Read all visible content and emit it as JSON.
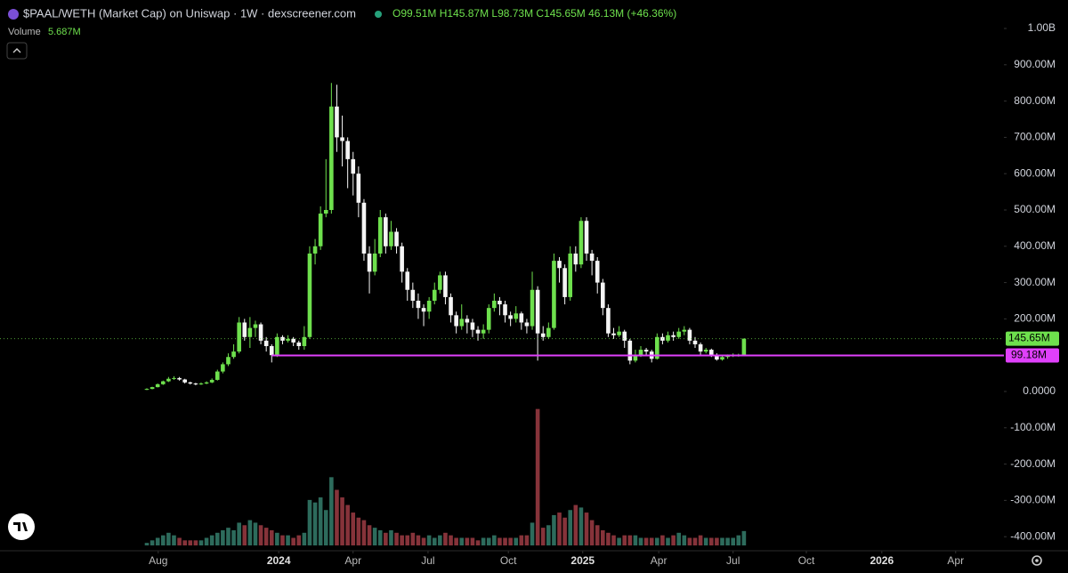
{
  "chart_data": {
    "type": "candlestick",
    "title": "$PAAL/WETH (Market Cap) on Uniswap · 1W · dexscreener.com",
    "ohlc_label": "O99.51M H145.87M L98.73M C145.65M 46.13M (+46.36%)",
    "volume_title": "Volume",
    "volume_last_label": "5.687M",
    "last_value_label": "145.65M",
    "up_color": "#6ee04d",
    "down_color": "#f5f5f5",
    "volume_up_color": "#2d6b5c",
    "volume_down_color": "#86333a",
    "open": [
      5,
      7,
      12,
      20,
      28,
      35,
      37,
      33,
      25,
      22,
      20,
      22,
      25,
      32,
      55,
      75,
      95,
      110,
      190,
      150,
      175,
      185,
      140,
      125,
      100,
      150,
      140,
      145,
      135,
      125,
      150,
      380,
      400,
      490,
      500,
      785,
      700,
      690,
      640,
      600,
      520,
      380,
      330,
      380,
      480,
      400,
      440,
      400,
      330,
      280,
      250,
      230,
      220,
      250,
      280,
      320,
      260,
      210,
      180,
      200,
      190,
      170,
      160,
      170,
      230,
      250,
      240,
      210,
      200,
      215,
      190,
      180,
      280,
      160,
      150,
      175,
      360,
      340,
      260,
      380,
      350,
      470,
      380,
      360,
      300,
      230,
      160,
      155,
      165,
      140,
      85,
      100,
      115,
      110,
      90,
      150,
      140,
      155,
      150,
      165,
      170,
      140,
      130,
      110,
      115,
      100,
      88,
      95,
      98,
      100,
      99.51
    ],
    "high": [
      9,
      13,
      22,
      30,
      40,
      42,
      40,
      35,
      27,
      24,
      25,
      28,
      36,
      60,
      80,
      105,
      130,
      205,
      200,
      205,
      195,
      190,
      150,
      130,
      160,
      155,
      155,
      150,
      140,
      180,
      400,
      420,
      510,
      640,
      850,
      845,
      760,
      700,
      660,
      620,
      530,
      400,
      420,
      500,
      490,
      470,
      450,
      410,
      340,
      300,
      270,
      240,
      260,
      300,
      330,
      330,
      270,
      220,
      240,
      210,
      200,
      180,
      185,
      240,
      270,
      260,
      250,
      220,
      235,
      220,
      200,
      330,
      290,
      180,
      190,
      380,
      370,
      350,
      400,
      400,
      480,
      480,
      390,
      370,
      310,
      240,
      175,
      180,
      170,
      145,
      115,
      125,
      120,
      115,
      160,
      160,
      165,
      165,
      175,
      180,
      175,
      150,
      135,
      120,
      118,
      105,
      100,
      102,
      105,
      104,
      145.87
    ],
    "low": [
      4,
      6,
      11,
      18,
      26,
      32,
      30,
      22,
      19,
      17,
      18,
      20,
      23,
      30,
      50,
      70,
      90,
      105,
      140,
      120,
      150,
      130,
      110,
      80,
      95,
      130,
      135,
      125,
      115,
      115,
      145,
      350,
      390,
      480,
      490,
      660,
      620,
      560,
      540,
      480,
      360,
      270,
      320,
      370,
      380,
      390,
      380,
      300,
      250,
      230,
      200,
      180,
      200,
      240,
      270,
      240,
      190,
      160,
      170,
      160,
      150,
      140,
      145,
      160,
      220,
      210,
      190,
      180,
      190,
      170,
      160,
      170,
      85,
      140,
      145,
      170,
      300,
      240,
      250,
      330,
      340,
      360,
      320,
      270,
      210,
      150,
      145,
      150,
      120,
      75,
      80,
      95,
      100,
      80,
      88,
      130,
      135,
      140,
      145,
      155,
      130,
      120,
      100,
      105,
      95,
      85,
      85,
      90,
      95,
      96,
      98.73
    ],
    "close": [
      7,
      12,
      20,
      28,
      35,
      37,
      33,
      25,
      22,
      20,
      22,
      25,
      32,
      55,
      75,
      95,
      110,
      190,
      150,
      175,
      185,
      140,
      125,
      100,
      150,
      140,
      145,
      135,
      125,
      150,
      380,
      400,
      490,
      500,
      785,
      700,
      690,
      640,
      600,
      520,
      380,
      330,
      380,
      480,
      400,
      440,
      400,
      330,
      280,
      250,
      230,
      220,
      250,
      280,
      320,
      260,
      210,
      180,
      200,
      190,
      170,
      160,
      170,
      230,
      250,
      240,
      210,
      200,
      215,
      190,
      180,
      280,
      160,
      150,
      175,
      360,
      340,
      260,
      380,
      350,
      470,
      380,
      360,
      300,
      230,
      160,
      155,
      165,
      140,
      85,
      100,
      115,
      110,
      90,
      150,
      140,
      155,
      150,
      165,
      170,
      140,
      130,
      110,
      115,
      100,
      88,
      95,
      98,
      100,
      100,
      145.65
    ],
    "volume": [
      1,
      2,
      3,
      4,
      5,
      4,
      3,
      2,
      2,
      2,
      2,
      3,
      4,
      5,
      6,
      7,
      6,
      9,
      8,
      10,
      9,
      8,
      7,
      6,
      5,
      4,
      4,
      3,
      4,
      5,
      18,
      17,
      19,
      14,
      27,
      22,
      19,
      16,
      13,
      11,
      10,
      8,
      7,
      6,
      5,
      6,
      5,
      4,
      4,
      5,
      4,
      3,
      4,
      3,
      4,
      5,
      4,
      3,
      3,
      3,
      3,
      2,
      3,
      3,
      4,
      3,
      3,
      3,
      3,
      4,
      4,
      9,
      54,
      7,
      8,
      12,
      13,
      11,
      14,
      16,
      15,
      13,
      10,
      8,
      6,
      5,
      4,
      3,
      4,
      4,
      4,
      3,
      3,
      3,
      3,
      4,
      3,
      4,
      5,
      4,
      3,
      3,
      4,
      3,
      3,
      3,
      3,
      3,
      3,
      4,
      5.687
    ],
    "volume_ylim": [
      0,
      75
    ],
    "xlim": [
      -27.05,
      157.4
    ],
    "xticks": [
      {
        "value": 2.1,
        "label": "Aug"
      },
      {
        "value": 24.3,
        "label": "2024"
      },
      {
        "value": 38,
        "label": "Apr"
      },
      {
        "value": 51.8,
        "label": "Jul"
      },
      {
        "value": 66.6,
        "label": "Oct"
      },
      {
        "value": 80.3,
        "label": "2025"
      },
      {
        "value": 94.3,
        "label": "Apr"
      },
      {
        "value": 108,
        "label": "Jul"
      },
      {
        "value": 121.5,
        "label": "Oct"
      },
      {
        "value": 135.4,
        "label": "2026"
      },
      {
        "value": 149,
        "label": "Apr"
      }
    ],
    "ylim": [
      -441.2,
      1029.4
    ],
    "yticks": [
      {
        "value": 1000,
        "label": "1.00B"
      },
      {
        "value": 900,
        "label": "900.00M"
      },
      {
        "value": 800,
        "label": "800.00M"
      },
      {
        "value": 700,
        "label": "700.00M"
      },
      {
        "value": 600,
        "label": "600.00M"
      },
      {
        "value": 500,
        "label": "500.00M"
      },
      {
        "value": 400,
        "label": "400.00M"
      },
      {
        "value": 300,
        "label": "300.00M"
      },
      {
        "value": 200,
        "label": "200.00M"
      },
      {
        "value": 0,
        "label": "0.0000"
      },
      {
        "value": -100,
        "label": "-100.00M"
      },
      {
        "value": -200,
        "label": "-200.00M"
      },
      {
        "value": -300,
        "label": "-300.00M"
      },
      {
        "value": -400,
        "label": "-400.00M"
      }
    ],
    "horizontal_lines": [
      {
        "value": 99.18,
        "label": "99.18M",
        "color": "#e040fb",
        "start": 23
      }
    ]
  }
}
